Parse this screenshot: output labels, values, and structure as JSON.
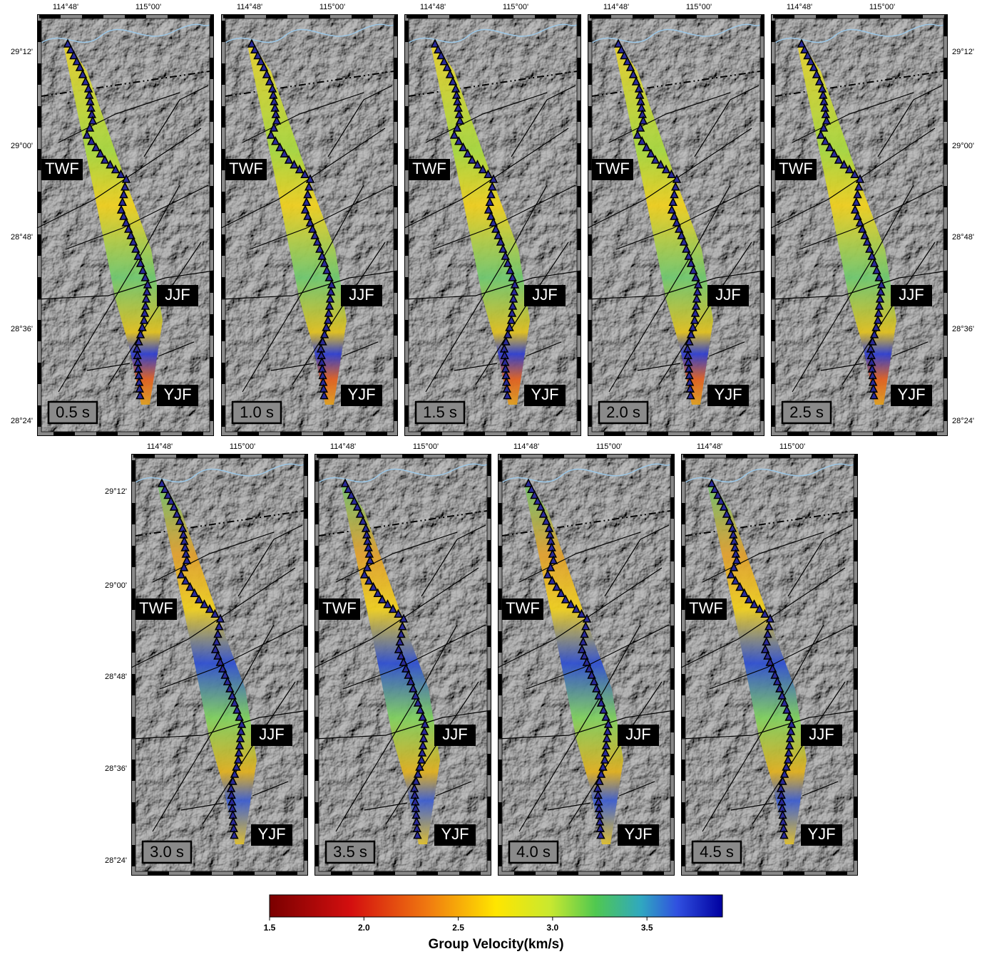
{
  "lon_labels": [
    "114°48'",
    "115°00'"
  ],
  "lat_labels": [
    "29°12'",
    "29°00'",
    "28°48'",
    "28°36'",
    "28°24'"
  ],
  "fault_labels": [
    "TWF",
    "JJF",
    "YJF"
  ],
  "panels": [
    {
      "period": "0.5 s"
    },
    {
      "period": "1.0 s"
    },
    {
      "period": "1.5 s"
    },
    {
      "period": "2.0 s"
    },
    {
      "period": "2.5 s"
    },
    {
      "period": "3.0 s"
    },
    {
      "period": "3.5 s"
    },
    {
      "period": "4.0 s"
    },
    {
      "period": "4.5 s"
    }
  ],
  "colorbar": {
    "title": "Group Velocity(km/s)",
    "range": [
      1.5,
      3.9
    ],
    "ticks": [
      {
        "value": 1.5,
        "label": "1.5"
      },
      {
        "value": 2,
        "label": "2.0"
      },
      {
        "value": 2.5,
        "label": "2.5"
      },
      {
        "value": 3,
        "label": "3.0"
      },
      {
        "value": 3.5,
        "label": "3.5"
      }
    ]
  }
}
